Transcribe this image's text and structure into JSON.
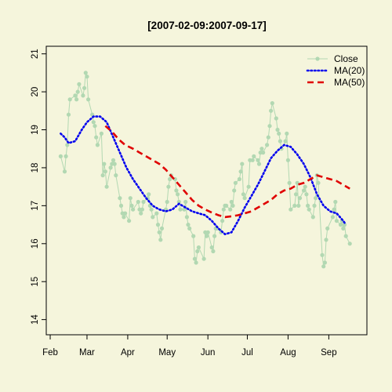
{
  "chart_data": {
    "type": "line",
    "title": "[2007-02-09:2007-09-17]",
    "xlabel": "",
    "ylabel": "",
    "x_range": [
      "2007-01-29",
      "2007-09-30"
    ],
    "ylim": [
      13.6,
      21.2
    ],
    "x_tick_labels": [
      {
        "date": "2007-02-01",
        "label": "Feb"
      },
      {
        "date": "2007-03-01",
        "label": "Mar"
      },
      {
        "date": "2007-04-01",
        "label": "Apr"
      },
      {
        "date": "2007-05-01",
        "label": "May"
      },
      {
        "date": "2007-06-01",
        "label": "Jun"
      },
      {
        "date": "2007-07-01",
        "label": "Jul"
      },
      {
        "date": "2007-08-01",
        "label": "Aug"
      },
      {
        "date": "2007-09-01",
        "label": "Sep"
      }
    ],
    "y_ticks": [
      14,
      15,
      16,
      17,
      18,
      19,
      20,
      21
    ],
    "grid": false,
    "legend_position": "top-right",
    "series": [
      {
        "name": "Close",
        "style": "line-points",
        "color": "#B2D8B2",
        "points": [
          [
            "2007-02-09",
            18.3
          ],
          [
            "2007-02-12",
            17.9
          ],
          [
            "2007-02-13",
            18.3
          ],
          [
            "2007-02-14",
            18.6
          ],
          [
            "2007-02-15",
            19.4
          ],
          [
            "2007-02-16",
            19.8
          ],
          [
            "2007-02-20",
            19.9
          ],
          [
            "2007-02-21",
            19.8
          ],
          [
            "2007-02-22",
            20.0
          ],
          [
            "2007-02-23",
            20.2
          ],
          [
            "2007-02-26",
            19.9
          ],
          [
            "2007-02-27",
            20.1
          ],
          [
            "2007-02-28",
            20.5
          ],
          [
            "2007-03-01",
            20.4
          ],
          [
            "2007-03-02",
            19.8
          ],
          [
            "2007-03-05",
            19.4
          ],
          [
            "2007-03-06",
            19.2
          ],
          [
            "2007-03-07",
            19.1
          ],
          [
            "2007-03-08",
            18.8
          ],
          [
            "2007-03-09",
            18.6
          ],
          [
            "2007-03-12",
            18.9
          ],
          [
            "2007-03-13",
            17.8
          ],
          [
            "2007-03-14",
            18.1
          ],
          [
            "2007-03-15",
            17.9
          ],
          [
            "2007-03-16",
            17.5
          ],
          [
            "2007-03-19",
            18.0
          ],
          [
            "2007-03-20",
            18.1
          ],
          [
            "2007-03-21",
            18.2
          ],
          [
            "2007-03-22",
            18.1
          ],
          [
            "2007-03-23",
            17.8
          ],
          [
            "2007-03-26",
            17.2
          ],
          [
            "2007-03-27",
            17.0
          ],
          [
            "2007-03-28",
            16.8
          ],
          [
            "2007-03-29",
            16.7
          ],
          [
            "2007-03-30",
            16.8
          ],
          [
            "2007-04-02",
            16.6
          ],
          [
            "2007-04-03",
            17.2
          ],
          [
            "2007-04-04",
            17.0
          ],
          [
            "2007-04-05",
            16.9
          ],
          [
            "2007-04-09",
            17.1
          ],
          [
            "2007-04-10",
            16.9
          ],
          [
            "2007-04-11",
            16.8
          ],
          [
            "2007-04-12",
            16.9
          ],
          [
            "2007-04-13",
            17.1
          ],
          [
            "2007-04-16",
            17.2
          ],
          [
            "2007-04-17",
            17.3
          ],
          [
            "2007-04-18",
            17.0
          ],
          [
            "2007-04-19",
            16.9
          ],
          [
            "2007-04-20",
            16.7
          ],
          [
            "2007-04-23",
            16.8
          ],
          [
            "2007-04-24",
            16.5
          ],
          [
            "2007-04-25",
            16.3
          ],
          [
            "2007-04-26",
            16.1
          ],
          [
            "2007-04-27",
            16.4
          ],
          [
            "2007-04-30",
            16.9
          ],
          [
            "2007-05-01",
            17.1
          ],
          [
            "2007-05-02",
            17.5
          ],
          [
            "2007-05-03",
            17.7
          ],
          [
            "2007-05-04",
            17.8
          ],
          [
            "2007-05-07",
            17.7
          ],
          [
            "2007-05-08",
            17.4
          ],
          [
            "2007-05-09",
            17.3
          ],
          [
            "2007-05-10",
            17.1
          ],
          [
            "2007-05-11",
            16.9
          ],
          [
            "2007-05-14",
            16.9
          ],
          [
            "2007-05-15",
            17.1
          ],
          [
            "2007-05-16",
            16.7
          ],
          [
            "2007-05-17",
            16.5
          ],
          [
            "2007-05-18",
            16.4
          ],
          [
            "2007-05-21",
            16.2
          ],
          [
            "2007-05-22",
            15.6
          ],
          [
            "2007-05-23",
            15.5
          ],
          [
            "2007-05-24",
            15.8
          ],
          [
            "2007-05-25",
            15.9
          ],
          [
            "2007-05-29",
            15.6
          ],
          [
            "2007-05-30",
            16.3
          ],
          [
            "2007-05-31",
            16.2
          ],
          [
            "2007-06-01",
            16.3
          ],
          [
            "2007-06-04",
            15.9
          ],
          [
            "2007-06-05",
            15.8
          ],
          [
            "2007-06-06",
            16.2
          ],
          [
            "2007-06-07",
            16.4
          ],
          [
            "2007-06-08",
            16.4
          ],
          [
            "2007-06-11",
            16.3
          ],
          [
            "2007-06-12",
            16.6
          ],
          [
            "2007-06-13",
            16.9
          ],
          [
            "2007-06-14",
            17.0
          ],
          [
            "2007-06-15",
            17.0
          ],
          [
            "2007-06-18",
            16.9
          ],
          [
            "2007-06-19",
            17.1
          ],
          [
            "2007-06-20",
            17.0
          ],
          [
            "2007-06-21",
            17.4
          ],
          [
            "2007-06-22",
            17.6
          ],
          [
            "2007-06-25",
            17.7
          ],
          [
            "2007-06-26",
            17.9
          ],
          [
            "2007-06-27",
            18.1
          ],
          [
            "2007-06-28",
            17.3
          ],
          [
            "2007-06-29",
            17.2
          ],
          [
            "2007-07-02",
            17.5
          ],
          [
            "2007-07-03",
            18.2
          ],
          [
            "2007-07-05",
            18.2
          ],
          [
            "2007-07-06",
            18.3
          ],
          [
            "2007-07-09",
            18.2
          ],
          [
            "2007-07-10",
            18.1
          ],
          [
            "2007-07-11",
            18.4
          ],
          [
            "2007-07-12",
            18.5
          ],
          [
            "2007-07-13",
            18.4
          ],
          [
            "2007-07-16",
            18.6
          ],
          [
            "2007-07-17",
            18.8
          ],
          [
            "2007-07-18",
            19.1
          ],
          [
            "2007-07-19",
            19.5
          ],
          [
            "2007-07-20",
            19.7
          ],
          [
            "2007-07-23",
            19.3
          ],
          [
            "2007-07-24",
            19.0
          ],
          [
            "2007-07-25",
            18.9
          ],
          [
            "2007-07-26",
            18.7
          ],
          [
            "2007-07-27",
            18.5
          ],
          [
            "2007-07-30",
            18.7
          ],
          [
            "2007-07-31",
            18.9
          ],
          [
            "2007-08-01",
            18.2
          ],
          [
            "2007-08-02",
            17.6
          ],
          [
            "2007-08-03",
            16.9
          ],
          [
            "2007-08-06",
            17.0
          ],
          [
            "2007-08-07",
            17.3
          ],
          [
            "2007-08-08",
            17.6
          ],
          [
            "2007-08-09",
            17.0
          ],
          [
            "2007-08-10",
            17.2
          ],
          [
            "2007-08-13",
            17.4
          ],
          [
            "2007-08-14",
            17.5
          ],
          [
            "2007-08-15",
            17.3
          ],
          [
            "2007-08-16",
            17.0
          ],
          [
            "2007-08-17",
            16.9
          ],
          [
            "2007-08-20",
            16.7
          ],
          [
            "2007-08-21",
            17.0
          ],
          [
            "2007-08-22",
            17.2
          ],
          [
            "2007-08-23",
            17.8
          ],
          [
            "2007-08-24",
            17.6
          ],
          [
            "2007-08-27",
            15.7
          ],
          [
            "2007-08-28",
            15.4
          ],
          [
            "2007-08-29",
            15.5
          ],
          [
            "2007-08-30",
            16.1
          ],
          [
            "2007-08-31",
            16.4
          ],
          [
            "2007-09-04",
            16.7
          ],
          [
            "2007-09-05",
            16.9
          ],
          [
            "2007-09-06",
            17.1
          ],
          [
            "2007-09-07",
            16.6
          ],
          [
            "2007-09-10",
            16.5
          ],
          [
            "2007-09-11",
            16.6
          ],
          [
            "2007-09-12",
            16.4
          ],
          [
            "2007-09-13",
            16.5
          ],
          [
            "2007-09-14",
            16.2
          ],
          [
            "2007-09-17",
            16.0
          ]
        ]
      },
      {
        "name": "MA(20)",
        "style": "dotted",
        "color": "#0000EE",
        "points": [
          [
            "2007-02-09",
            18.9
          ],
          [
            "2007-02-12",
            18.8
          ],
          [
            "2007-02-15",
            18.65
          ],
          [
            "2007-02-20",
            18.7
          ],
          [
            "2007-02-25",
            19.0
          ],
          [
            "2007-03-01",
            19.2
          ],
          [
            "2007-03-06",
            19.35
          ],
          [
            "2007-03-11",
            19.35
          ],
          [
            "2007-03-16",
            19.2
          ],
          [
            "2007-03-21",
            18.8
          ],
          [
            "2007-03-26",
            18.4
          ],
          [
            "2007-03-31",
            18.0
          ],
          [
            "2007-04-05",
            17.7
          ],
          [
            "2007-04-10",
            17.45
          ],
          [
            "2007-04-15",
            17.2
          ],
          [
            "2007-04-20",
            17.0
          ],
          [
            "2007-04-25",
            16.9
          ],
          [
            "2007-04-30",
            16.85
          ],
          [
            "2007-05-05",
            16.9
          ],
          [
            "2007-05-10",
            17.05
          ],
          [
            "2007-05-15",
            16.95
          ],
          [
            "2007-05-20",
            16.85
          ],
          [
            "2007-05-25",
            16.8
          ],
          [
            "2007-05-30",
            16.75
          ],
          [
            "2007-06-04",
            16.6
          ],
          [
            "2007-06-09",
            16.4
          ],
          [
            "2007-06-14",
            16.25
          ],
          [
            "2007-06-19",
            16.3
          ],
          [
            "2007-06-24",
            16.6
          ],
          [
            "2007-06-29",
            16.95
          ],
          [
            "2007-07-04",
            17.25
          ],
          [
            "2007-07-09",
            17.55
          ],
          [
            "2007-07-14",
            17.9
          ],
          [
            "2007-07-19",
            18.25
          ],
          [
            "2007-07-24",
            18.45
          ],
          [
            "2007-07-29",
            18.6
          ],
          [
            "2007-08-03",
            18.55
          ],
          [
            "2007-08-08",
            18.35
          ],
          [
            "2007-08-13",
            18.1
          ],
          [
            "2007-08-18",
            17.75
          ],
          [
            "2007-08-23",
            17.3
          ],
          [
            "2007-08-28",
            17.0
          ],
          [
            "2007-09-02",
            16.85
          ],
          [
            "2007-09-07",
            16.8
          ],
          [
            "2007-09-12",
            16.6
          ],
          [
            "2007-09-14",
            16.5
          ]
        ]
      },
      {
        "name": "MA(50)",
        "style": "dashed",
        "color": "#E00000",
        "points": [
          [
            "2007-03-15",
            19.1
          ],
          [
            "2007-03-20",
            18.95
          ],
          [
            "2007-03-25",
            18.75
          ],
          [
            "2007-03-30",
            18.6
          ],
          [
            "2007-04-05",
            18.5
          ],
          [
            "2007-04-10",
            18.4
          ],
          [
            "2007-04-15",
            18.3
          ],
          [
            "2007-04-20",
            18.2
          ],
          [
            "2007-04-25",
            18.1
          ],
          [
            "2007-04-30",
            17.95
          ],
          [
            "2007-05-05",
            17.75
          ],
          [
            "2007-05-10",
            17.55
          ],
          [
            "2007-05-15",
            17.35
          ],
          [
            "2007-05-20",
            17.15
          ],
          [
            "2007-05-25",
            17.0
          ],
          [
            "2007-05-30",
            16.9
          ],
          [
            "2007-06-04",
            16.82
          ],
          [
            "2007-06-09",
            16.75
          ],
          [
            "2007-06-14",
            16.7
          ],
          [
            "2007-06-19",
            16.72
          ],
          [
            "2007-06-24",
            16.75
          ],
          [
            "2007-06-29",
            16.8
          ],
          [
            "2007-07-04",
            16.85
          ],
          [
            "2007-07-09",
            16.95
          ],
          [
            "2007-07-14",
            17.05
          ],
          [
            "2007-07-19",
            17.15
          ],
          [
            "2007-07-24",
            17.3
          ],
          [
            "2007-07-29",
            17.4
          ],
          [
            "2007-08-03",
            17.45
          ],
          [
            "2007-08-08",
            17.55
          ],
          [
            "2007-08-13",
            17.6
          ],
          [
            "2007-08-18",
            17.7
          ],
          [
            "2007-08-23",
            17.8
          ],
          [
            "2007-08-28",
            17.75
          ],
          [
            "2007-09-02",
            17.7
          ],
          [
            "2007-09-07",
            17.65
          ],
          [
            "2007-09-12",
            17.55
          ],
          [
            "2007-09-17",
            17.45
          ]
        ]
      }
    ]
  }
}
